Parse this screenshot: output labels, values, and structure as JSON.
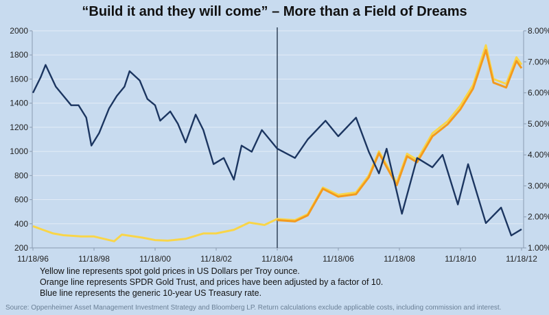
{
  "chart_data": {
    "type": "line",
    "title": "“Build it and they will come” – More than a Field of Dreams",
    "x_ticks": [
      "11/18/96",
      "11/18/98",
      "11/18/00",
      "11/18/02",
      "11/18/04",
      "11/18/06",
      "11/18/08",
      "11/18/10",
      "11/18/12"
    ],
    "y_left": {
      "ticks": [
        "2000",
        "1800",
        "1600",
        "1400",
        "1200",
        "1000",
        "800",
        "600",
        "400",
        "200"
      ],
      "range": [
        200,
        2000
      ]
    },
    "y_right": {
      "ticks": [
        "8.00%",
        "7.00%",
        "6.00%",
        "5.00%",
        "4.00%",
        "3.00%",
        "2.00%",
        "1.00%"
      ],
      "range": [
        1,
        8
      ]
    },
    "grid": true,
    "vertical_marker": "2004-11-18",
    "series": [
      {
        "axis": "left",
        "color": "#f9d548",
        "points": [
          [
            "1996-11",
            380
          ],
          [
            "1997-03",
            350
          ],
          [
            "1997-07",
            320
          ],
          [
            "1997-11",
            305
          ],
          [
            "1998-06",
            295
          ],
          [
            "1998-11",
            295
          ],
          [
            "1999-07",
            255
          ],
          [
            "1999-10",
            310
          ],
          [
            "2000-06",
            285
          ],
          [
            "2000-11",
            265
          ],
          [
            "2001-04",
            260
          ],
          [
            "2001-11",
            275
          ],
          [
            "2002-06",
            320
          ],
          [
            "2002-11",
            320
          ],
          [
            "2003-06",
            350
          ],
          [
            "2003-12",
            410
          ],
          [
            "2004-06",
            390
          ],
          [
            "2004-11",
            440
          ],
          [
            "2005-06",
            430
          ],
          [
            "2005-11",
            480
          ],
          [
            "2006-05",
            700
          ],
          [
            "2006-11",
            640
          ],
          [
            "2007-06",
            660
          ],
          [
            "2007-11",
            800
          ],
          [
            "2008-03",
            1000
          ],
          [
            "2008-10",
            740
          ],
          [
            "2009-02",
            980
          ],
          [
            "2009-06",
            930
          ],
          [
            "2009-12",
            1150
          ],
          [
            "2010-06",
            1250
          ],
          [
            "2010-11",
            1380
          ],
          [
            "2011-04",
            1550
          ],
          [
            "2011-09",
            1880
          ],
          [
            "2011-12",
            1600
          ],
          [
            "2012-05",
            1560
          ],
          [
            "2012-09",
            1780
          ],
          [
            "2012-11",
            1720
          ]
        ]
      },
      {
        "axis": "left",
        "color": "#f39a1e",
        "points": [
          [
            "2004-11",
            430
          ],
          [
            "2005-06",
            420
          ],
          [
            "2005-11",
            470
          ],
          [
            "2006-05",
            690
          ],
          [
            "2006-11",
            625
          ],
          [
            "2007-06",
            645
          ],
          [
            "2007-11",
            785
          ],
          [
            "2008-03",
            985
          ],
          [
            "2008-10",
            720
          ],
          [
            "2009-02",
            960
          ],
          [
            "2009-06",
            910
          ],
          [
            "2009-12",
            1125
          ],
          [
            "2010-06",
            1225
          ],
          [
            "2010-11",
            1350
          ],
          [
            "2011-04",
            1520
          ],
          [
            "2011-09",
            1840
          ],
          [
            "2011-12",
            1570
          ],
          [
            "2012-05",
            1530
          ],
          [
            "2012-09",
            1750
          ],
          [
            "2012-11",
            1690
          ]
        ]
      },
      {
        "axis": "right",
        "color": "#1b3560",
        "points": [
          [
            "1996-11",
            6.0
          ],
          [
            "1997-02",
            6.5
          ],
          [
            "1997-04",
            6.9
          ],
          [
            "1997-08",
            6.2
          ],
          [
            "1997-11",
            5.9
          ],
          [
            "1998-02",
            5.6
          ],
          [
            "1998-05",
            5.6
          ],
          [
            "1998-08",
            5.2
          ],
          [
            "1998-10",
            4.3
          ],
          [
            "1999-01",
            4.7
          ],
          [
            "1999-05",
            5.5
          ],
          [
            "1999-08",
            5.9
          ],
          [
            "1999-11",
            6.2
          ],
          [
            "2000-01",
            6.7
          ],
          [
            "2000-05",
            6.4
          ],
          [
            "2000-08",
            5.8
          ],
          [
            "2000-11",
            5.6
          ],
          [
            "2001-01",
            5.1
          ],
          [
            "2001-05",
            5.4
          ],
          [
            "2001-08",
            5.0
          ],
          [
            "2001-11",
            4.4
          ],
          [
            "2002-03",
            5.3
          ],
          [
            "2002-06",
            4.8
          ],
          [
            "2002-10",
            3.7
          ],
          [
            "2003-02",
            3.9
          ],
          [
            "2003-06",
            3.2
          ],
          [
            "2003-09",
            4.3
          ],
          [
            "2004-01",
            4.1
          ],
          [
            "2004-05",
            4.8
          ],
          [
            "2004-11",
            4.2
          ],
          [
            "2005-06",
            3.9
          ],
          [
            "2005-11",
            4.5
          ],
          [
            "2006-06",
            5.1
          ],
          [
            "2006-11",
            4.6
          ],
          [
            "2007-06",
            5.2
          ],
          [
            "2007-11",
            4.1
          ],
          [
            "2008-03",
            3.4
          ],
          [
            "2008-06",
            4.2
          ],
          [
            "2008-12",
            2.1
          ],
          [
            "2009-06",
            3.9
          ],
          [
            "2009-12",
            3.6
          ],
          [
            "2010-04",
            4.0
          ],
          [
            "2010-10",
            2.4
          ],
          [
            "2011-02",
            3.7
          ],
          [
            "2011-09",
            1.8
          ],
          [
            "2012-03",
            2.3
          ],
          [
            "2012-07",
            1.4
          ],
          [
            "2012-11",
            1.6
          ]
        ]
      }
    ]
  },
  "notes": [
    "Yellow line represents spot gold prices in US Dollars per Troy ounce.",
    "Orange line represents SPDR Gold Trust, and prices have been adjusted by a factor of 10.",
    "Blue line represents the generic 10-year US Treasury rate."
  ],
  "source": "Source: Oppenheimer Asset Management Investment Strategy and Bloomberg LP. Return calculations exclude applicable costs, including commission and interest."
}
